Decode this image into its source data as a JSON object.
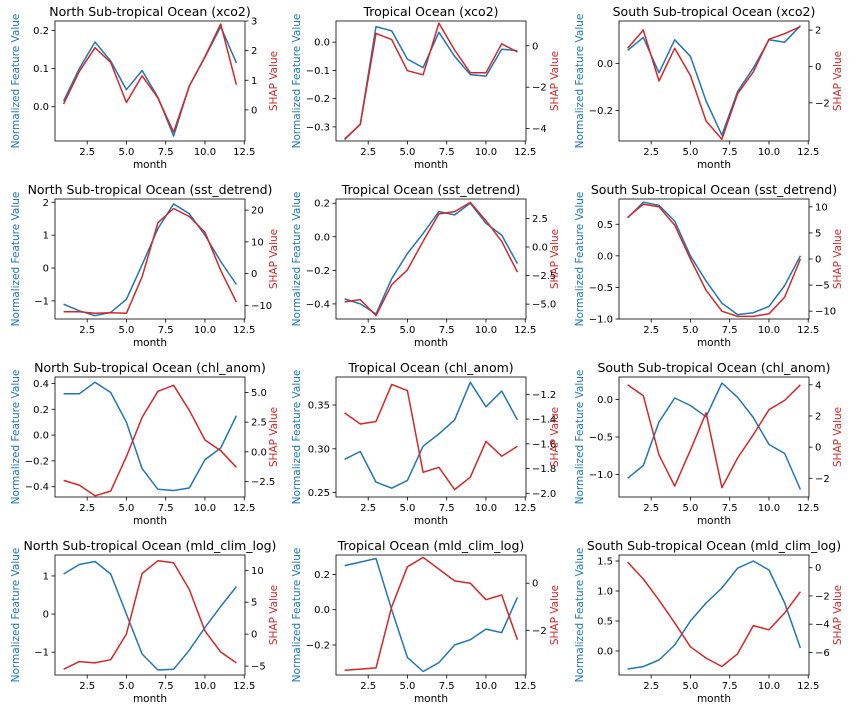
{
  "chart_data": [
    {
      "type": "line",
      "title": "North Sub-tropical Ocean (xco2)",
      "xlabel": "month",
      "ylabel_left": "Normalized Feature Value",
      "ylabel_right": "SHAP Value",
      "x": [
        1,
        2,
        3,
        4,
        5,
        6,
        7,
        8,
        9,
        10,
        11,
        12
      ],
      "xticks": [
        2.5,
        5.0,
        7.5,
        10.0,
        12.5
      ],
      "ylim_left": [
        -0.09,
        0.225
      ],
      "yticks_left": [
        0.0,
        0.1,
        0.2
      ],
      "ylim_right": [
        -1.05,
        3.0
      ],
      "yticks_right": [
        0,
        1,
        2,
        3
      ],
      "series": [
        {
          "axis": "left",
          "color": "#1f77b4",
          "values": [
            0.015,
            0.1,
            0.17,
            0.12,
            0.045,
            0.095,
            0.025,
            -0.077,
            0.055,
            0.13,
            0.21,
            0.115
          ]
        },
        {
          "axis": "right",
          "color": "#d62728",
          "values": [
            0.2,
            1.3,
            2.1,
            1.6,
            0.25,
            1.15,
            0.4,
            -0.75,
            0.8,
            1.8,
            2.9,
            0.85
          ]
        }
      ]
    },
    {
      "type": "line",
      "title": "Tropical Ocean (xco2)",
      "xlabel": "month",
      "ylabel_left": "Normalized Feature Value",
      "ylabel_right": "SHAP Value",
      "x": [
        1,
        2,
        3,
        4,
        5,
        6,
        7,
        8,
        9,
        10,
        11,
        12
      ],
      "xticks": [
        2.5,
        5.0,
        7.5,
        10.0,
        12.5
      ],
      "ylim_left": [
        -0.35,
        0.075
      ],
      "yticks_left": [
        -0.3,
        -0.2,
        -0.1,
        0.0
      ],
      "ylim_right": [
        -4.6,
        1.2
      ],
      "yticks_right": [
        -4,
        -2,
        0
      ],
      "series": [
        {
          "axis": "left",
          "color": "#1f77b4",
          "values": [
            -0.345,
            -0.29,
            0.055,
            0.04,
            -0.06,
            -0.09,
            0.035,
            -0.05,
            -0.115,
            -0.12,
            -0.025,
            -0.03
          ]
        },
        {
          "axis": "right",
          "color": "#d62728",
          "values": [
            -4.5,
            -3.8,
            0.6,
            0.3,
            -1.2,
            -1.4,
            1.1,
            -0.2,
            -1.3,
            -1.3,
            0.1,
            -0.3
          ]
        }
      ]
    },
    {
      "type": "line",
      "title": "South Sub-tropical Ocean (xco2)",
      "xlabel": "month",
      "ylabel_left": "Normalized Feature Value",
      "ylabel_right": "SHAP Value",
      "x": [
        1,
        2,
        3,
        4,
        5,
        6,
        7,
        8,
        9,
        10,
        11,
        12
      ],
      "xticks": [
        2.5,
        5.0,
        7.5,
        10.0,
        12.5
      ],
      "ylim_left": [
        -0.33,
        0.18
      ],
      "yticks_left": [
        -0.2,
        0.0
      ],
      "ylim_right": [
        -4.1,
        2.5
      ],
      "yticks_right": [
        -2,
        0,
        2
      ],
      "series": [
        {
          "axis": "left",
          "color": "#1f77b4",
          "values": [
            0.055,
            0.11,
            -0.04,
            0.1,
            0.03,
            -0.16,
            -0.305,
            -0.12,
            -0.02,
            0.1,
            0.09,
            0.16
          ]
        },
        {
          "axis": "right",
          "color": "#d62728",
          "values": [
            1.0,
            2.0,
            -0.8,
            1.0,
            -0.5,
            -3.0,
            -4.0,
            -1.5,
            -0.3,
            1.5,
            1.8,
            2.2
          ]
        }
      ]
    },
    {
      "type": "line",
      "title": "North Sub-tropical Ocean (sst_detrend)",
      "xlabel": "month",
      "ylabel_left": "Normalized Feature Value",
      "ylabel_right": "SHAP Value",
      "x": [
        1,
        2,
        3,
        4,
        5,
        6,
        7,
        8,
        9,
        10,
        11,
        12
      ],
      "xticks": [
        2.5,
        5.0,
        7.5,
        10.0,
        12.5
      ],
      "ylim_left": [
        -1.55,
        2.1
      ],
      "yticks_left": [
        -1,
        0,
        1,
        2
      ],
      "ylim_right": [
        -14.3,
        23.5
      ],
      "yticks_right": [
        -10,
        0,
        10,
        20
      ],
      "series": [
        {
          "axis": "left",
          "color": "#1f77b4",
          "values": [
            -1.1,
            -1.3,
            -1.45,
            -1.35,
            -0.95,
            0.1,
            1.2,
            1.95,
            1.65,
            1.0,
            0.2,
            -0.5
          ]
        },
        {
          "axis": "right",
          "color": "#d62728",
          "values": [
            -12,
            -12,
            -12.5,
            -12.3,
            -12.5,
            -1,
            16,
            20.5,
            18,
            13,
            1,
            -9
          ]
        }
      ]
    },
    {
      "type": "line",
      "title": "Tropical Ocean (sst_detrend)",
      "xlabel": "month",
      "ylabel_left": "Normalized Feature Value",
      "ylabel_right": "SHAP Value",
      "x": [
        1,
        2,
        3,
        4,
        5,
        6,
        7,
        8,
        9,
        10,
        11,
        12
      ],
      "xticks": [
        2.5,
        5.0,
        7.5,
        10.0,
        12.5
      ],
      "ylim_left": [
        -0.49,
        0.225
      ],
      "yticks_left": [
        -0.4,
        -0.2,
        0.0,
        0.2
      ],
      "ylim_right": [
        -6.3,
        4.2
      ],
      "yticks_right": [
        -5.0,
        -2.5,
        0.0,
        2.5
      ],
      "series": [
        {
          "axis": "left",
          "color": "#1f77b4",
          "values": [
            -0.37,
            -0.4,
            -0.46,
            -0.25,
            -0.1,
            0.02,
            0.15,
            0.13,
            0.2,
            0.08,
            0.01,
            -0.16
          ]
        },
        {
          "axis": "right",
          "color": "#d62728",
          "values": [
            -4.8,
            -4.6,
            -6.0,
            -3.3,
            -2.0,
            0.5,
            2.9,
            3.1,
            3.9,
            2.3,
            0.5,
            -2.2
          ]
        }
      ]
    },
    {
      "type": "line",
      "title": "South Sub-tropical Ocean (sst_detrend)",
      "xlabel": "month",
      "ylabel_left": "Normalized Feature Value",
      "ylabel_right": "SHAP Value",
      "x": [
        1,
        2,
        3,
        4,
        5,
        6,
        7,
        8,
        9,
        10,
        11,
        12
      ],
      "xticks": [
        2.5,
        5.0,
        7.5,
        10.0,
        12.5
      ],
      "ylim_left": [
        -1.0,
        0.9
      ],
      "yticks_left": [
        -1.0,
        -0.5,
        0.0,
        0.5
      ],
      "ylim_right": [
        -11.5,
        11.5
      ],
      "yticks_right": [
        -10,
        -5,
        0,
        5,
        10
      ],
      "series": [
        {
          "axis": "left",
          "color": "#1f77b4",
          "values": [
            0.6,
            0.85,
            0.8,
            0.55,
            0.0,
            -0.4,
            -0.75,
            -0.93,
            -0.9,
            -0.8,
            -0.47,
            0.0
          ]
        },
        {
          "axis": "right",
          "color": "#d62728",
          "values": [
            8,
            10.5,
            10,
            6.5,
            0,
            -6,
            -10,
            -11,
            -11,
            -10.5,
            -7.3,
            0
          ]
        }
      ]
    },
    {
      "type": "line",
      "title": "North Sub-tropical Ocean (chl_anom)",
      "xlabel": "month",
      "ylabel_left": "Normalized Feature Value",
      "ylabel_right": "SHAP Value",
      "x": [
        1,
        2,
        3,
        4,
        5,
        6,
        7,
        8,
        9,
        10,
        11,
        12
      ],
      "xticks": [
        2.5,
        5.0,
        7.5,
        10.0,
        12.5
      ],
      "ylim_left": [
        -0.48,
        0.45
      ],
      "yticks_left": [
        -0.4,
        -0.2,
        0.0,
        0.2,
        0.4
      ],
      "ylim_right": [
        -3.8,
        6.3
      ],
      "yticks_right": [
        -2.5,
        0.0,
        2.5,
        5.0
      ],
      "series": [
        {
          "axis": "left",
          "color": "#1f77b4",
          "values": [
            0.32,
            0.32,
            0.41,
            0.33,
            0.1,
            -0.26,
            -0.42,
            -0.43,
            -0.41,
            -0.19,
            -0.1,
            0.15
          ]
        },
        {
          "axis": "right",
          "color": "#d62728",
          "values": [
            -2.4,
            -2.8,
            -3.7,
            -3.3,
            -0.4,
            2.9,
            5.1,
            5.6,
            3.5,
            1.0,
            0.1,
            -1.3
          ]
        }
      ]
    },
    {
      "type": "line",
      "title": "Tropical Ocean (chl_anom)",
      "xlabel": "month",
      "ylabel_left": "Normalized Feature Value",
      "ylabel_right": "SHAP Value",
      "x": [
        1,
        2,
        3,
        4,
        5,
        6,
        7,
        8,
        9,
        10,
        11,
        12
      ],
      "xticks": [
        2.5,
        5.0,
        7.5,
        10.0,
        12.5
      ],
      "ylim_left": [
        0.245,
        0.382
      ],
      "yticks_left": [
        0.25,
        0.3,
        0.35
      ],
      "ylim_right": [
        -2.03,
        -1.06
      ],
      "yticks_right": [
        -2.0,
        -1.8,
        -1.6,
        -1.4,
        -1.2
      ],
      "series": [
        {
          "axis": "left",
          "color": "#1f77b4",
          "values": [
            0.288,
            0.297,
            0.262,
            0.255,
            0.264,
            0.303,
            0.317,
            0.333,
            0.376,
            0.348,
            0.366,
            0.333
          ]
        },
        {
          "axis": "right",
          "color": "#d62728",
          "values": [
            -1.35,
            -1.44,
            -1.42,
            -1.12,
            -1.17,
            -1.83,
            -1.79,
            -1.97,
            -1.87,
            -1.58,
            -1.7,
            -1.62
          ]
        }
      ]
    },
    {
      "type": "line",
      "title": "South Sub-tropical Ocean (chl_anom)",
      "xlabel": "month",
      "ylabel_left": "Normalized Feature Value",
      "ylabel_right": "SHAP Value",
      "x": [
        1,
        2,
        3,
        4,
        5,
        6,
        7,
        8,
        9,
        10,
        11,
        12
      ],
      "xticks": [
        2.5,
        5.0,
        7.5,
        10.0,
        12.5
      ],
      "ylim_left": [
        -1.3,
        0.3
      ],
      "yticks_left": [
        -1.0,
        -0.5,
        0.0
      ],
      "ylim_right": [
        -3.2,
        4.5
      ],
      "yticks_right": [
        -2,
        0,
        2,
        4
      ],
      "series": [
        {
          "axis": "left",
          "color": "#1f77b4",
          "values": [
            -1.05,
            -0.88,
            -0.3,
            0.02,
            -0.08,
            -0.23,
            0.22,
            0.03,
            -0.24,
            -0.6,
            -0.72,
            -1.2
          ]
        },
        {
          "axis": "right",
          "color": "#d62728",
          "values": [
            4.0,
            3.3,
            -0.5,
            -2.5,
            -0.2,
            2.2,
            -2.6,
            -0.7,
            0.8,
            2.4,
            3.0,
            4.0
          ]
        }
      ]
    },
    {
      "type": "line",
      "title": "North Sub-tropical Ocean (mld_clim_log)",
      "xlabel": "month",
      "ylabel_left": "Normalized Feature Value",
      "ylabel_right": "SHAP Value",
      "x": [
        1,
        2,
        3,
        4,
        5,
        6,
        7,
        8,
        9,
        10,
        11,
        12
      ],
      "xticks": [
        2.5,
        5.0,
        7.5,
        10.0,
        12.5
      ],
      "ylim_left": [
        -1.6,
        1.55
      ],
      "yticks_left": [
        -1,
        0,
        1
      ],
      "ylim_right": [
        -6.4,
        12.4
      ],
      "yticks_right": [
        -5,
        0,
        5,
        10
      ],
      "series": [
        {
          "axis": "left",
          "color": "#1f77b4",
          "values": [
            1.05,
            1.3,
            1.38,
            1.05,
            0.0,
            -1.05,
            -1.47,
            -1.45,
            -0.95,
            -0.35,
            0.2,
            0.72
          ]
        },
        {
          "axis": "right",
          "color": "#d62728",
          "values": [
            -5.5,
            -4.3,
            -4.5,
            -4.0,
            0,
            9.5,
            11.5,
            11.2,
            7,
            0.5,
            -2.8,
            -4.5
          ]
        }
      ]
    },
    {
      "type": "line",
      "title": "Tropical Ocean (mld_clim_log)",
      "xlabel": "month",
      "ylabel_left": "Normalized Feature Value",
      "ylabel_right": "SHAP Value",
      "x": [
        1,
        2,
        3,
        4,
        5,
        6,
        7,
        8,
        9,
        10,
        11,
        12
      ],
      "xticks": [
        2.5,
        5.0,
        7.5,
        10.0,
        12.5
      ],
      "ylim_left": [
        -0.37,
        0.31
      ],
      "yticks_left": [
        -0.2,
        0.0,
        0.2
      ],
      "ylim_right": [
        -3.9,
        1.2
      ],
      "yticks_right": [
        -2,
        0
      ],
      "series": [
        {
          "axis": "left",
          "color": "#1f77b4",
          "values": [
            0.25,
            0.27,
            0.29,
            0.0,
            -0.27,
            -0.35,
            -0.3,
            -0.2,
            -0.17,
            -0.11,
            -0.13,
            0.07
          ]
        },
        {
          "axis": "right",
          "color": "#d62728",
          "values": [
            -3.7,
            -3.65,
            -3.6,
            -1.0,
            0.7,
            1.1,
            0.6,
            0.1,
            0.0,
            -0.7,
            -0.5,
            -2.4
          ]
        }
      ]
    },
    {
      "type": "line",
      "title": "South Sub-tropical Ocean (mld_clim_log)",
      "xlabel": "month",
      "ylabel_left": "Normalized Feature Value",
      "ylabel_right": "SHAP Value",
      "x": [
        1,
        2,
        3,
        4,
        5,
        6,
        7,
        8,
        9,
        10,
        11,
        12
      ],
      "xticks": [
        2.5,
        5.0,
        7.5,
        10.0,
        12.5
      ],
      "ylim_left": [
        -0.4,
        1.6
      ],
      "yticks_left": [
        0.0,
        0.5,
        1.0,
        1.5
      ],
      "ylim_right": [
        -7.6,
        0.9
      ],
      "yticks_right": [
        -6,
        -4,
        -2,
        0
      ],
      "series": [
        {
          "axis": "left",
          "color": "#1f77b4",
          "values": [
            -0.3,
            -0.26,
            -0.15,
            0.1,
            0.5,
            0.8,
            1.05,
            1.38,
            1.5,
            1.35,
            0.8,
            0.05
          ]
        },
        {
          "axis": "right",
          "color": "#d62728",
          "values": [
            0.4,
            -0.8,
            -2.3,
            -3.9,
            -5.6,
            -6.4,
            -7.0,
            -6.1,
            -4.1,
            -4.4,
            -3.2,
            -1.7
          ]
        }
      ]
    }
  ]
}
